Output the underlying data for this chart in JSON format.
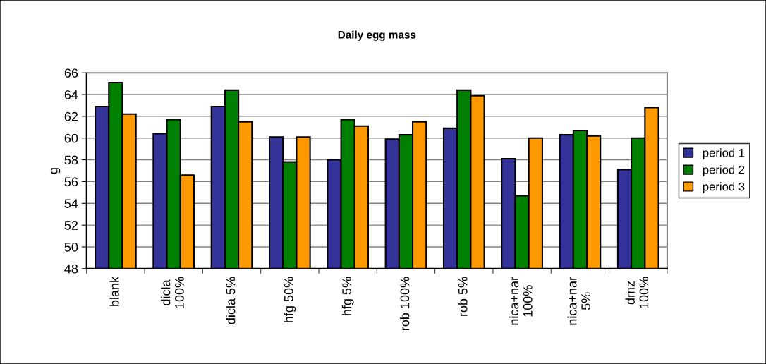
{
  "chart_data": {
    "type": "bar",
    "title": "Daily egg mass",
    "ylabel": "g",
    "categories": [
      "blank",
      "dicla\n100%",
      "dicla 5%",
      "hfg 50%",
      "hfg 5%",
      "rob 100%",
      "rob 5%",
      "nica+nar\n100%",
      "nica+nar\n5%",
      "dmz\n100%"
    ],
    "series": [
      {
        "name": "period 1",
        "color": "#333399",
        "values": [
          62.9,
          60.4,
          62.9,
          60.1,
          58.0,
          59.9,
          60.9,
          58.1,
          60.3,
          57.1
        ]
      },
      {
        "name": "period 2",
        "color": "#008000",
        "values": [
          65.1,
          61.7,
          64.4,
          57.8,
          61.7,
          60.3,
          64.4,
          54.7,
          60.7,
          60.0
        ]
      },
      {
        "name": "period 3",
        "color": "#ff9900",
        "values": [
          62.2,
          56.6,
          61.5,
          60.1,
          61.1,
          61.5,
          63.9,
          60.0,
          60.2,
          62.8
        ]
      }
    ],
    "ylim": [
      48,
      66
    ],
    "yticks": [
      48,
      50,
      52,
      54,
      56,
      58,
      60,
      62,
      64,
      66
    ],
    "grid": "y",
    "legend": "right"
  }
}
